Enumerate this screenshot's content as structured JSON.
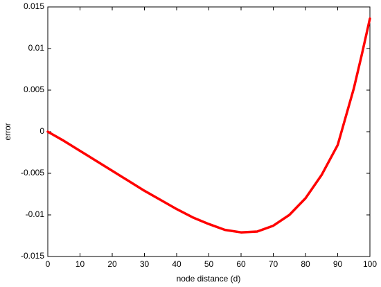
{
  "chart_data": {
    "type": "line",
    "xlabel": "node distance (d)",
    "ylabel": "error",
    "x": [
      0,
      5,
      10,
      15,
      20,
      25,
      30,
      35,
      40,
      45,
      50,
      55,
      60,
      65,
      70,
      75,
      80,
      85,
      90,
      95,
      97.5,
      100
    ],
    "series": [
      {
        "name": "error",
        "color": "#ff0000",
        "values": [
          0,
          -0.0011,
          -0.0023,
          -0.0035,
          -0.0047,
          -0.0059,
          -0.0071,
          -0.0082,
          -0.0093,
          -0.0103,
          -0.0111,
          -0.0118,
          -0.0121,
          -0.012,
          -0.0113,
          -0.01,
          -0.008,
          -0.0052,
          -0.0016,
          0.0052,
          0.0093,
          0.0136
        ]
      }
    ],
    "xlim": [
      0,
      100
    ],
    "xticks": [
      0,
      10,
      20,
      30,
      40,
      50,
      60,
      70,
      80,
      90,
      100
    ],
    "ylim": [
      -0.015,
      0.015
    ],
    "yticks": [
      -0.015,
      -0.01,
      -0.005,
      0,
      0.005,
      0.01,
      0.015
    ],
    "grid": false
  }
}
